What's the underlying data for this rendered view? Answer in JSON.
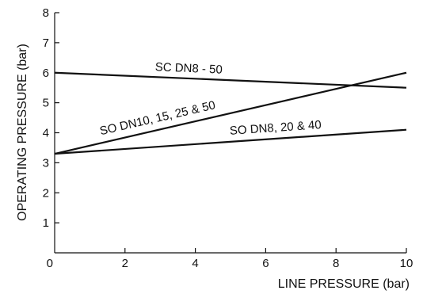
{
  "chart_data": {
    "type": "line",
    "xlabel": "LINE PRESSURE (bar)",
    "ylabel": "OPERATING PRESSURE (bar)",
    "xlim": [
      0,
      10
    ],
    "ylim": [
      0,
      8
    ],
    "x_ticks": [
      "0",
      "2",
      "4",
      "6",
      "8",
      "10"
    ],
    "y_ticks": [
      "1",
      "2",
      "3",
      "4",
      "5",
      "6",
      "7",
      "8"
    ],
    "grid": false,
    "legend": "none",
    "series": [
      {
        "name": "SC DN8 - 50",
        "x": [
          0,
          10
        ],
        "y": [
          6.0,
          5.5
        ]
      },
      {
        "name": "SO DN10, 15, 25 & 50",
        "x": [
          0,
          10
        ],
        "y": [
          3.3,
          6.0
        ]
      },
      {
        "name": "SO DN8, 20 & 40",
        "x": [
          0,
          10
        ],
        "y": [
          3.3,
          4.1
        ]
      }
    ]
  }
}
